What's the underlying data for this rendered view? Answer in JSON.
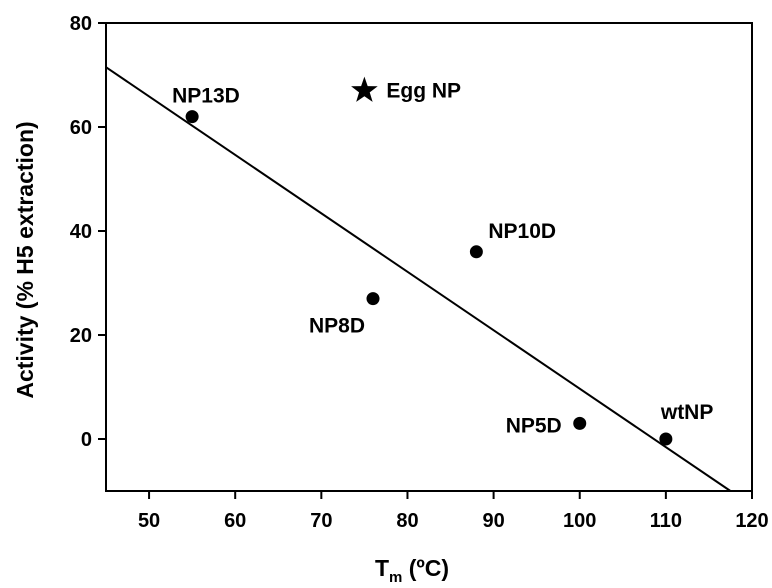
{
  "chart_data": {
    "type": "scatter",
    "title": "",
    "xlabel_main": "T",
    "xlabel_sub": "m",
    "xlabel_rest": " (ºC)",
    "ylabel": "Activity (% H5 extraction)",
    "xlim": [
      45,
      120
    ],
    "ylim": [
      -10,
      80
    ],
    "x_ticks": [
      50,
      60,
      70,
      80,
      90,
      100,
      110,
      120
    ],
    "y_ticks": [
      0,
      20,
      40,
      60,
      80
    ],
    "grid": false,
    "legend": "none",
    "points": [
      {
        "label": "NP13D",
        "x": 55,
        "y": 62,
        "marker": "circle"
      },
      {
        "label": "NP8D",
        "x": 76,
        "y": 27,
        "marker": "circle"
      },
      {
        "label": "NP10D",
        "x": 88,
        "y": 36,
        "marker": "circle"
      },
      {
        "label": "NP5D",
        "x": 100,
        "y": 3,
        "marker": "circle"
      },
      {
        "label": "wtNP",
        "x": 110,
        "y": 0,
        "marker": "circle"
      },
      {
        "label": "Egg NP",
        "x": 75,
        "y": 67,
        "marker": "star"
      }
    ],
    "regression_line": {
      "x": [
        45,
        117.5
      ],
      "y": [
        71.5,
        -10
      ]
    },
    "color": "#000000"
  }
}
